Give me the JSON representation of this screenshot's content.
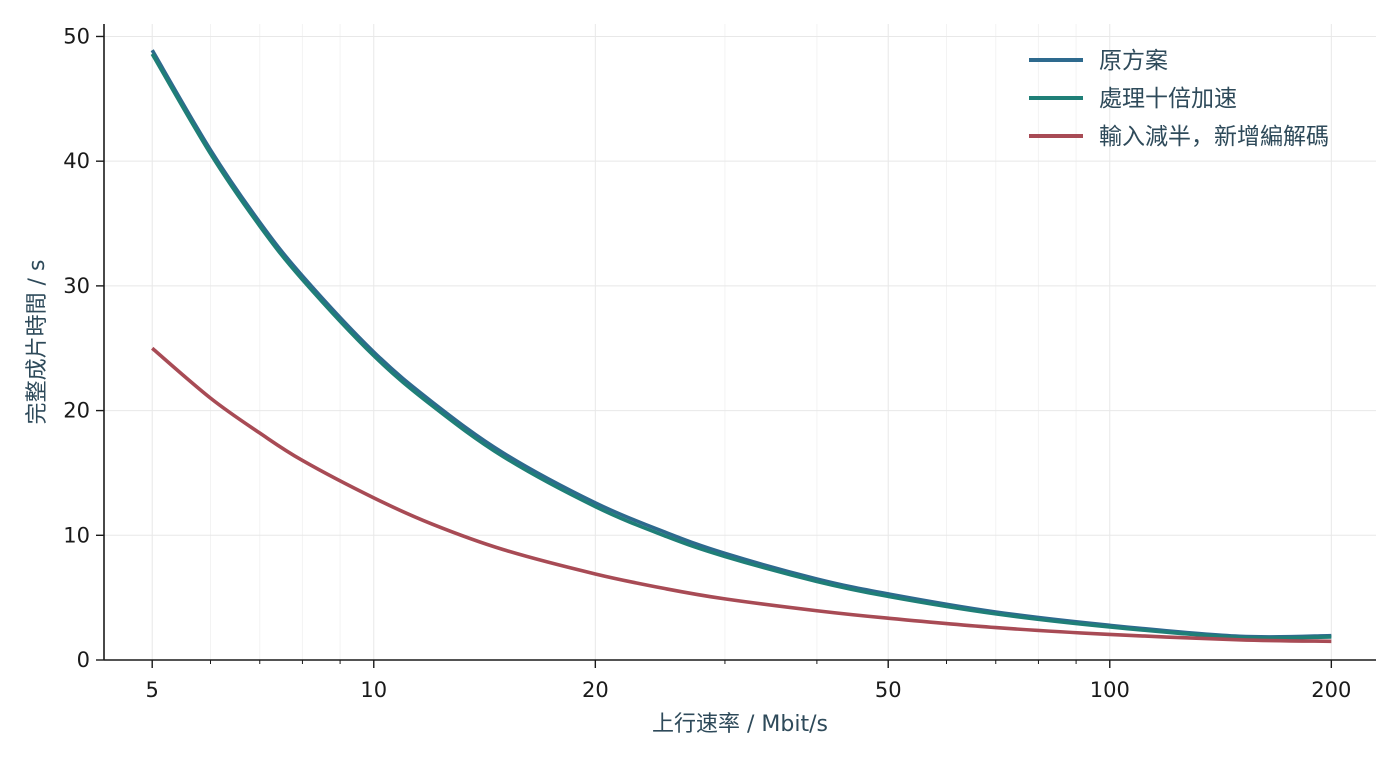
{
  "chart_data": {
    "type": "line",
    "title": "",
    "xlabel": "上行速率 / Mbit/s",
    "ylabel": "完整成片時間 / s",
    "x_scale": "log",
    "xlim": [
      4.3,
      230
    ],
    "ylim": [
      0,
      51
    ],
    "x_ticks": [
      5,
      10,
      20,
      50,
      100,
      200
    ],
    "x_tick_labels": [
      "5",
      "10",
      "20",
      "50",
      "100",
      "200"
    ],
    "y_ticks": [
      0,
      10,
      20,
      30,
      40,
      50
    ],
    "y_tick_labels": [
      "0",
      "10",
      "20",
      "30",
      "40",
      "50"
    ],
    "grid": true,
    "legend_position": "top-right",
    "label_color": "#2e4a5a",
    "grid_color": "#e8e8e8",
    "axis_color": "#1a1a1a",
    "x": [
      5,
      6,
      7,
      8,
      10,
      12,
      15,
      20,
      25,
      30,
      40,
      50,
      70,
      100,
      150,
      200
    ],
    "series": [
      {
        "name": "原方案",
        "color": "#2e6a8e",
        "values": [
          48.9,
          40.9,
          35.1,
          30.8,
          24.7,
          20.7,
          16.6,
          12.6,
          10.2,
          8.55,
          6.5,
          5.3,
          3.85,
          2.78,
          1.9,
          1.95
        ]
      },
      {
        "name": "處理十倍加速",
        "color": "#1f7f77",
        "values": [
          48.6,
          40.6,
          34.8,
          30.5,
          24.4,
          20.4,
          16.3,
          12.3,
          9.9,
          8.3,
          6.3,
          5.1,
          3.7,
          2.65,
          1.8,
          1.85
        ]
      },
      {
        "name": "輸入減半，新增編解碼",
        "color": "#a84b55",
        "values": [
          25.0,
          21.0,
          18.2,
          16.0,
          13.0,
          10.9,
          8.85,
          6.9,
          5.7,
          4.9,
          3.95,
          3.35,
          2.6,
          2.05,
          1.62,
          1.5
        ]
      }
    ]
  }
}
